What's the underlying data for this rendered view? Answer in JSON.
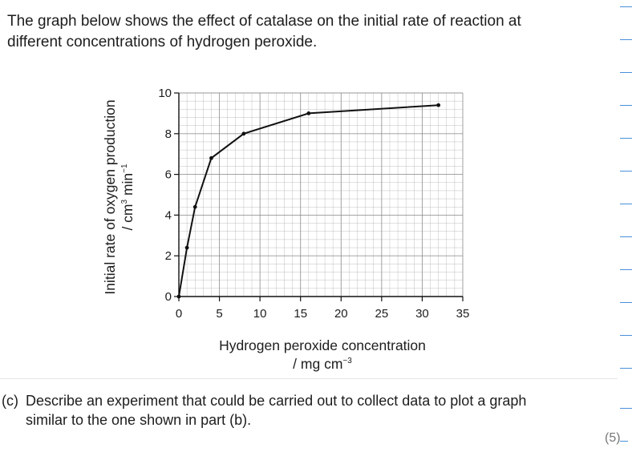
{
  "intro": {
    "line1": "The graph below shows the effect of catalase on the initial rate of reaction at",
    "line2": "different concentrations of hydrogen peroxide."
  },
  "chart_data": {
    "type": "line",
    "x": [
      0,
      1,
      2,
      4,
      8,
      16,
      32
    ],
    "y": [
      0,
      2.4,
      4.4,
      6.8,
      8.0,
      9.0,
      9.4
    ],
    "xlabel": "Hydrogen peroxide concentration",
    "xunit": "/ mg cm",
    "xunit_sup": "−3",
    "ylabel": "Initial rate of oxygen production",
    "yunit": "/ cm",
    "yunit_sup1": "3",
    "yunit_mid": " min",
    "yunit_sup2": "−1",
    "xlim": [
      0,
      35
    ],
    "ylim": [
      0,
      10
    ],
    "xticks": [
      "0",
      "5",
      "10",
      "15",
      "20",
      "25",
      "30",
      "35"
    ],
    "yticks": [
      "0",
      "2",
      "4",
      "6",
      "8",
      "10"
    ],
    "grid": true,
    "grid_color": "#8c8c8c",
    "line_color": "#111111"
  },
  "question": {
    "label": "(c)",
    "line1": "Describe an experiment that could be carried out to collect data to plot a graph",
    "line2": "similar to the one shown in part (b)."
  },
  "marks": "(5)",
  "colors": {
    "text": "#1d1d1d",
    "margin_lines": "#4a90d9",
    "marks": "#777777"
  }
}
